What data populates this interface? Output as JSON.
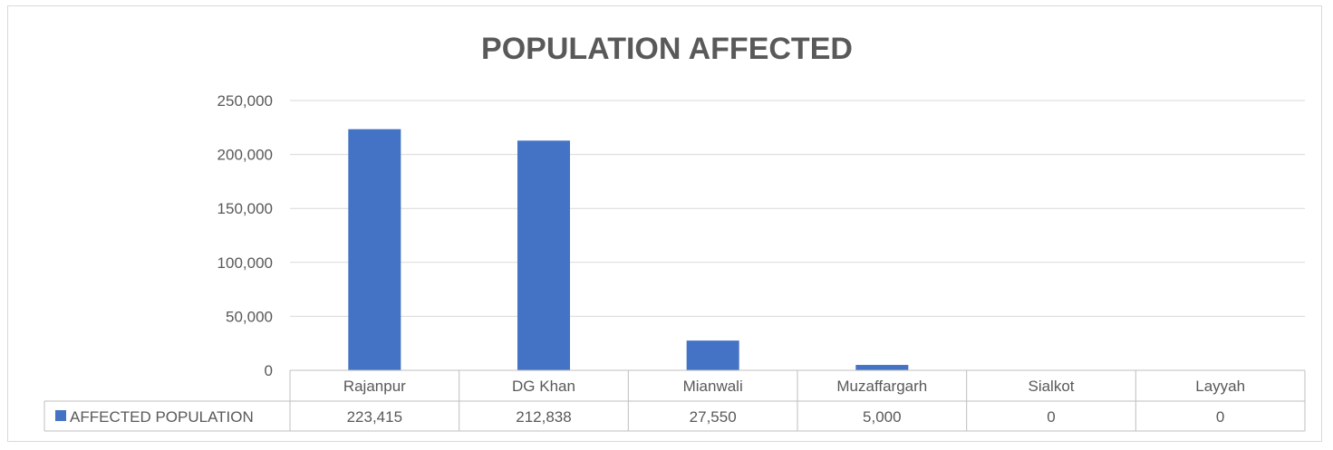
{
  "chart_data": {
    "type": "bar",
    "title": "POPULATION AFFECTED",
    "categories": [
      "Rajanpur",
      "DG Khan",
      "Mianwali",
      "Muzaffargarh",
      "Sialkot",
      "Layyah"
    ],
    "series": [
      {
        "name": "AFFECTED POPULATION",
        "values": [
          223415,
          212838,
          27550,
          5000,
          0,
          0
        ],
        "color": "#4472c4"
      }
    ],
    "data_table_values": [
      "223,415",
      "212,838",
      "27,550",
      "5,000",
      "0",
      "0"
    ],
    "yticks": [
      "0",
      "50,000",
      "100,000",
      "150,000",
      "200,000",
      "250,000"
    ],
    "ylim": [
      0,
      250000
    ],
    "grid": true,
    "legend_position": "data-table"
  }
}
